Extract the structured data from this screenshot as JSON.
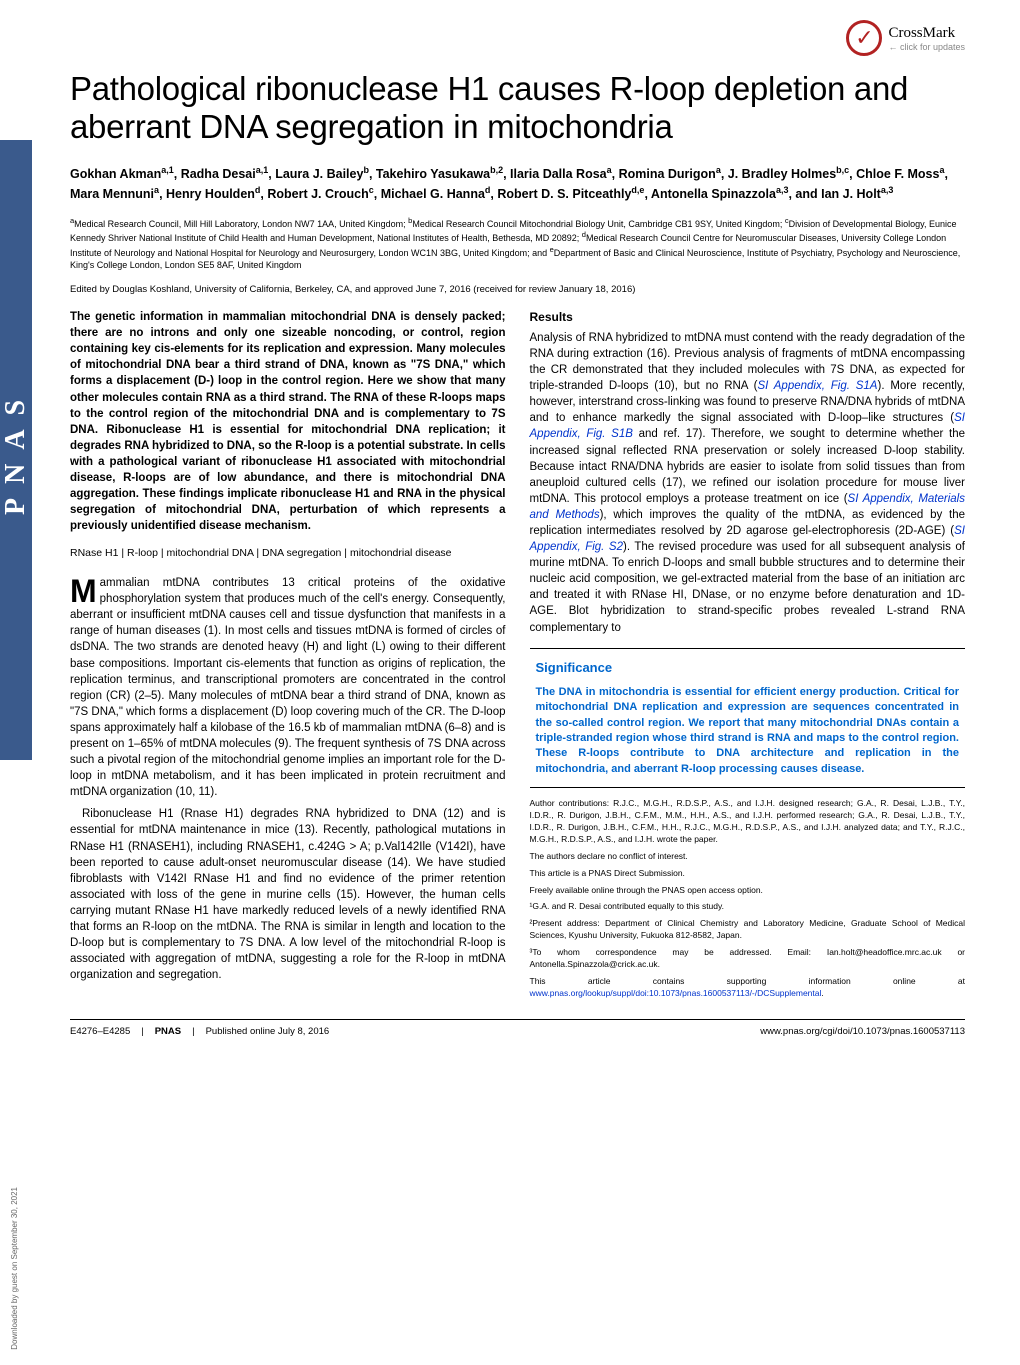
{
  "banner": {
    "text": "PNAS"
  },
  "download_note": "Downloaded by guest on September 30, 2021",
  "crossmark": {
    "label": "CrossMark",
    "sub": "← click for updates"
  },
  "title": "Pathological ribonuclease H1 causes R-loop depletion and aberrant DNA segregation in mitochondria",
  "authors_html": "Gokhan Akman<sup>a,1</sup>, Radha Desai<sup>a,1</sup>, Laura J. Bailey<sup>b</sup>, Takehiro Yasukawa<sup>b,2</sup>, Ilaria Dalla Rosa<sup>a</sup>, Romina Durigon<sup>a</sup>, J. Bradley Holmes<sup>b,c</sup>, Chloe F. Moss<sup>a</sup>, Mara Mennuni<sup>a</sup>, Henry Houlden<sup>d</sup>, Robert J. Crouch<sup>c</sup>, Michael G. Hanna<sup>d</sup>, Robert D. S. Pitceathly<sup>d,e</sup>, Antonella Spinazzola<sup>a,3</sup>, and Ian J. Holt<sup>a,3</sup>",
  "affiliations_html": "<sup>a</sup>Medical Research Council, Mill Hill Laboratory, London NW7 1AA, United Kingdom; <sup>b</sup>Medical Research Council Mitochondrial Biology Unit, Cambridge CB1 9SY, United Kingdom; <sup>c</sup>Division of Developmental Biology, Eunice Kennedy Shriver National Institute of Child Health and Human Development, National Institutes of Health, Bethesda, MD 20892; <sup>d</sup>Medical Research Council Centre for Neuromuscular Diseases, University College London Institute of Neurology and National Hospital for Neurology and Neurosurgery, London WC1N 3BG, United Kingdom; and <sup>e</sup>Department of Basic and Clinical Neuroscience, Institute of Psychiatry, Psychology and Neuroscience, King's College London, London SE5 8AF, United Kingdom",
  "edited": "Edited by Douglas Koshland, University of California, Berkeley, CA, and approved June 7, 2016 (received for review January 18, 2016)",
  "abstract": "The genetic information in mammalian mitochondrial DNA is densely packed; there are no introns and only one sizeable noncoding, or control, region containing key cis-elements for its replication and expression. Many molecules of mitochondrial DNA bear a third strand of DNA, known as \"7S DNA,\" which forms a displacement (D-) loop in the control region. Here we show that many other molecules contain RNA as a third strand. The RNA of these R-loops maps to the control region of the mitochondrial DNA and is complementary to 7S DNA. Ribonuclease H1 is essential for mitochondrial DNA replication; it degrades RNA hybridized to DNA, so the R-loop is a potential substrate. In cells with a pathological variant of ribonuclease H1 associated with mitochondrial disease, R-loops are of low abundance, and there is mitochondrial DNA aggregation. These findings implicate ribonuclease H1 and RNA in the physical segregation of mitochondrial DNA, perturbation of which represents a previously unidentified disease mechanism.",
  "keywords": "RNase H1 | R-loop | mitochondrial DNA | DNA segregation | mitochondrial disease",
  "body": {
    "dropcap": "M",
    "p1_rest": "ammalian mtDNA contributes 13 critical proteins of the oxidative phosphorylation system that produces much of the cell's energy. Consequently, aberrant or insufficient mtDNA causes cell and tissue dysfunction that manifests in a range of human diseases (1). In most cells and tissues mtDNA is formed of circles of dsDNA. The two strands are denoted heavy (H) and light (L) owing to their different base compositions. Important cis-elements that function as origins of replication, the replication terminus, and transcriptional promoters are concentrated in the control region (CR) (2–5). Many molecules of mtDNA bear a third strand of DNA, known as \"7S DNA,\" which forms a displacement (D) loop covering much of the CR. The D-loop spans approximately half a kilobase of the 16.5 kb of mammalian mtDNA (6–8) and is present on 1–65% of mtDNA molecules (9). The frequent synthesis of 7S DNA across such a pivotal region of the mitochondrial genome implies an important role for the D-loop in mtDNA metabolism, and it has been implicated in protein recruitment and mtDNA organization (10, 11).",
    "p2": "Ribonuclease H1 (Rnase H1) degrades RNA hybridized to DNA (12) and is essential for mtDNA maintenance in mice (13). Recently, pathological mutations in RNase H1 (RNASEH1), including RNASEH1, c.424G > A; p.Val142Ile (V142I), have been reported to cause adult-onset neuromuscular disease (14). We have studied fibroblasts with V142I RNase H1 and find no evidence of the primer retention associated with loss of the gene in murine cells (15). However, the human cells carrying mutant RNase H1 have markedly reduced levels of a newly identified RNA that forms an R-loop on the mtDNA. The RNA is similar in length and location to the D-loop but is complementary to 7S DNA. A low level of the mitochondrial R-loop is associated with aggregation of mtDNA, suggesting a role for the R-loop in mtDNA organization and segregation."
  },
  "results": {
    "heading": "Results",
    "p1_a": "Analysis of RNA hybridized to mtDNA must contend with the ready degradation of the RNA during extraction (16). Previous analysis of fragments of mtDNA encompassing the CR demonstrated that they included molecules with 7S DNA, as expected for triple-stranded D-loops (10), but no RNA (",
    "link1": "SI Appendix, Fig. S1A",
    "p1_b": "). More recently, however, interstrand cross-linking was found to preserve RNA/DNA hybrids of mtDNA and to enhance markedly the signal associated with D-loop–like structures (",
    "link2": "SI Appendix, Fig. S1B",
    "p1_c": " and ref. 17). Therefore, we sought to determine whether the increased signal reflected RNA preservation or solely increased D-loop stability. Because intact RNA/DNA hybrids are easier to isolate from solid tissues than from aneuploid cultured cells (17), we refined our isolation procedure for mouse liver mtDNA. This protocol employs a protease treatment on ice (",
    "link3": "SI Appendix, Materials and Methods",
    "p1_d": "), which improves the quality of the mtDNA, as evidenced by the replication intermediates resolved by 2D agarose gel-electrophoresis (2D-AGE) (",
    "link4": "SI Appendix, Fig. S2",
    "p1_e": "). The revised procedure was used for all subsequent analysis of murine mtDNA. To enrich D-loops and small bubble structures and to determine their nucleic acid composition, we gel-extracted material from the base of an initiation arc and treated it with RNase HI, DNase, or no enzyme before denaturation and 1D-AGE. Blot hybridization to strand-specific probes revealed L-strand RNA complementary to"
  },
  "significance": {
    "title": "Significance",
    "text": "The DNA in mitochondria is essential for efficient energy production. Critical for mitochondrial DNA replication and expression are sequences concentrated in the so-called control region. We report that many mitochondrial DNAs contain a triple-stranded region whose third strand is RNA and maps to the control region. These R-loops contribute to DNA architecture and replication in the mitochondria, and aberrant R-loop processing causes disease."
  },
  "notes": {
    "contributions": "Author contributions: R.J.C., M.G.H., R.D.S.P., A.S., and I.J.H. designed research; G.A., R. Desai, L.J.B., T.Y., I.D.R., R. Durigon, J.B.H., C.F.M., M.M., H.H., A.S., and I.J.H. performed research; G.A., R. Desai, L.J.B., T.Y., I.D.R., R. Durigon, J.B.H., C.F.M., H.H., R.J.C., M.G.H., R.D.S.P., A.S., and I.J.H. analyzed data; and T.Y., R.J.C., M.G.H., R.D.S.P., A.S., and I.J.H. wrote the paper.",
    "conflict": "The authors declare no conflict of interest.",
    "submission": "This article is a PNAS Direct Submission.",
    "openaccess": "Freely available online through the PNAS open access option.",
    "note1": "¹G.A. and R. Desai contributed equally to this study.",
    "note2": "²Present address: Department of Clinical Chemistry and Laboratory Medicine, Graduate School of Medical Sciences, Kyushu University, Fukuoka 812-8582, Japan.",
    "note3": "³To whom correspondence may be addressed. Email: Ian.holt@headoffice.mrc.ac.uk or Antonella.Spinazzola@crick.ac.uk.",
    "supp_a": "This article contains supporting information online at ",
    "supp_link": "www.pnas.org/lookup/suppl/doi:10.1073/pnas.1600537113/-/DCSupplemental",
    "supp_b": "."
  },
  "footer": {
    "pages": "E4276–E4285",
    "journal": "PNAS",
    "pubdate": "Published online July 8, 2016",
    "doi": "www.pnas.org/cgi/doi/10.1073/pnas.1600537113"
  }
}
